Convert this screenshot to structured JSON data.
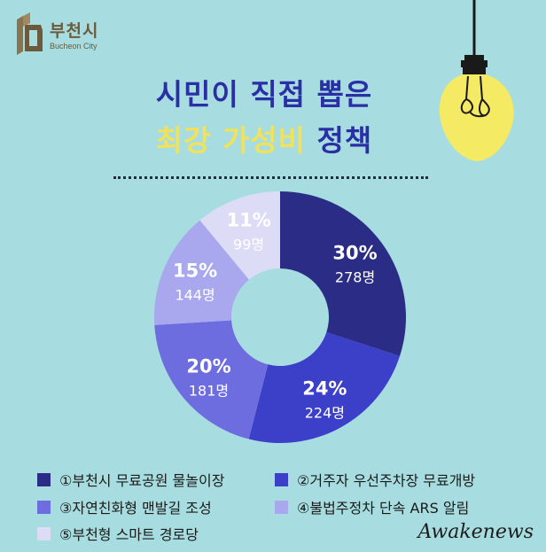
{
  "logo": {
    "name": "부천시",
    "sub": "Bucheon City"
  },
  "title": {
    "line1": "시민이 직접 뽑은",
    "line2_highlight": "최강 가성비",
    "line2_rest": " 정책"
  },
  "chart_data": {
    "type": "pie",
    "donut": true,
    "categories": [
      "①부천시 무료공원 물놀이장",
      "②거주자 우선주차장 무료개방",
      "③자연친화형 맨발길 조성",
      "④불법주정차  단속 ARS 알림",
      "⑤부천형 스마트 경로당"
    ],
    "values": [
      30,
      24,
      20,
      15,
      11
    ],
    "percent_labels": [
      "30%",
      "24%",
      "20%",
      "15%",
      "11%"
    ],
    "count_labels": [
      "278명",
      "224명",
      "181명",
      "144명",
      "99명"
    ],
    "colors": [
      "#2b2c86",
      "#3c3fc8",
      "#6e6de0",
      "#a9a8ee",
      "#dcdcf6"
    ],
    "label_colors": [
      "#ffffff",
      "#ffffff",
      "#ffffff",
      "#ffffff",
      "#ffffff"
    ]
  },
  "legend": [
    {
      "label": "①부천시 무료공원 물놀이장",
      "color": "#2b2c86"
    },
    {
      "label": "②거주자 우선주차장 무료개방",
      "color": "#3c3fc8"
    },
    {
      "label": "③자연친화형 맨발길 조성",
      "color": "#6e6de0"
    },
    {
      "label": "④불법주정차  단속 ARS 알림",
      "color": "#a9a8ee"
    },
    {
      "label": "⑤부천형 스마트 경로당",
      "color": "#dcdcf6"
    }
  ],
  "watermark": "Awakenews"
}
